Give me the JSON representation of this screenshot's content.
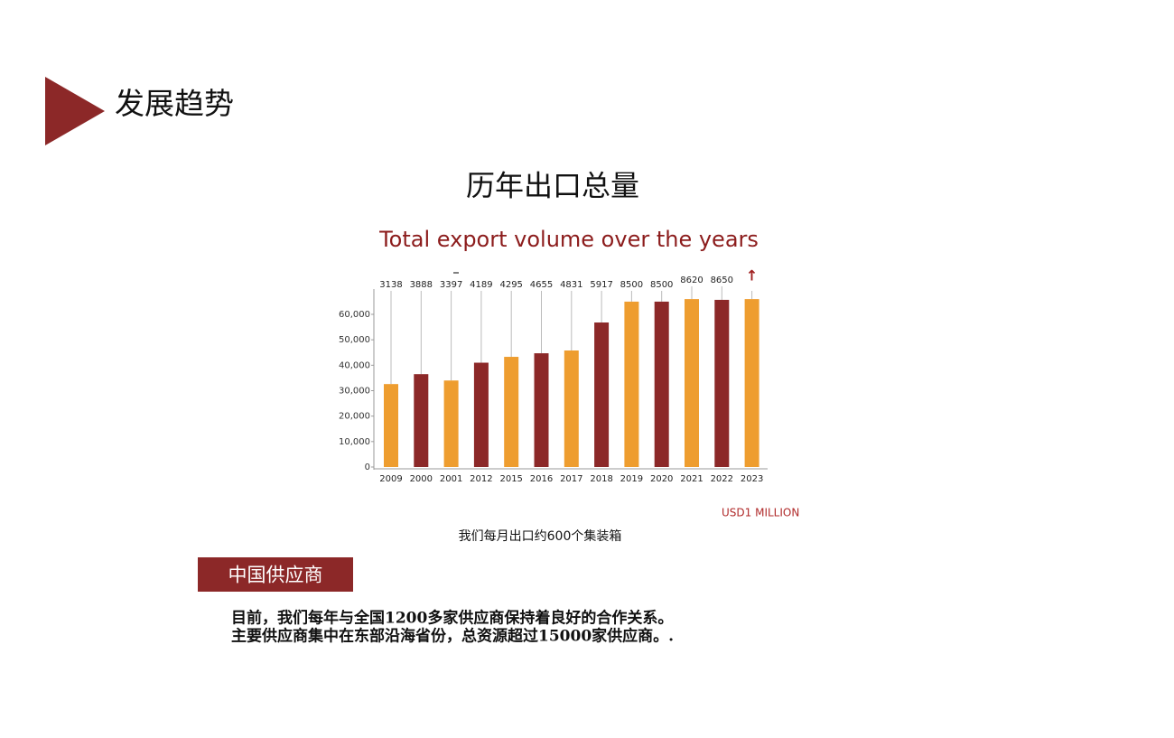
{
  "header": {
    "title": "发展趋势"
  },
  "chart_data": {
    "type": "bar",
    "title": "历年出口总量",
    "subtitle": "Total export volume over the years",
    "categories": [
      "2009",
      "2000",
      "2001",
      "2012",
      "2015",
      "2016",
      "2017",
      "2018",
      "2019",
      "2020",
      "2021",
      "2022",
      "2023"
    ],
    "values": [
      32600,
      36500,
      34000,
      41000,
      43300,
      44700,
      45800,
      56800,
      65000,
      65000,
      66000,
      65700,
      66000
    ],
    "colors": [
      "#ee9d2f",
      "#8c2828",
      "#ee9d2f",
      "#8c2828",
      "#ee9d2f",
      "#8c2828",
      "#ee9d2f",
      "#8c2828",
      "#ee9d2f",
      "#8c2828",
      "#ee9d2f",
      "#8c2828",
      "#ee9d2f"
    ],
    "annotations": [
      "3138",
      "3888",
      "3397",
      "4189",
      "4295",
      "4655",
      "4831",
      "5917",
      "8500",
      "8500",
      "8620",
      "8650",
      "↑"
    ],
    "ylim": [
      0,
      70000
    ],
    "yticks": [
      0,
      {
        "value": 10000,
        "label": "10,000"
      },
      {
        "value": 20000,
        "label": "20,000"
      },
      {
        "value": 30000,
        "label": "30,000"
      },
      {
        "value": 40000,
        "label": "40,000"
      },
      {
        "value": 50000,
        "label": "50,000"
      },
      {
        "value": 60000,
        "label": "60,000"
      }
    ],
    "unit": "USD1 MILLION"
  },
  "note": "我们每月出口约600个集装箱",
  "section": {
    "title": "中国供应商",
    "lines": [
      "目前，我们每年与全国1200多家供应商保持着良好的合作关系。",
      "主要供应商集中在东部沿海省份，总资源超过15000家供应商。."
    ]
  }
}
